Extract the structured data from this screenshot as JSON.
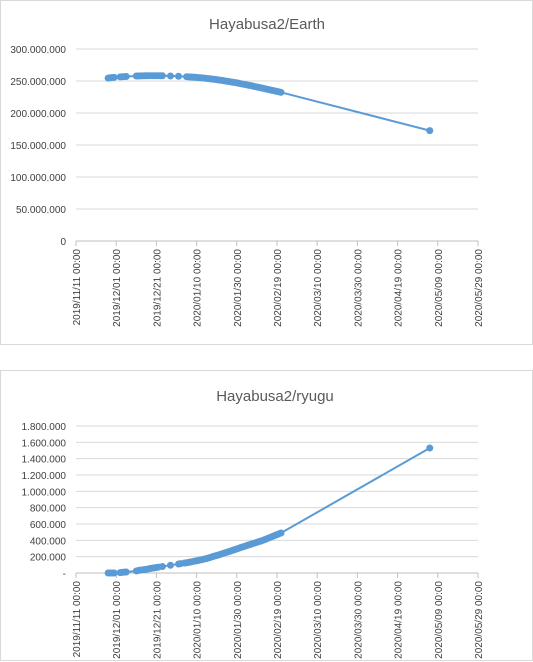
{
  "chart_data": [
    {
      "type": "scatter",
      "title": "Hayabusa2/Earth",
      "ylim": [
        0,
        300000000
      ],
      "yticks": [
        "300.000.000",
        "250.000.000",
        "200.000.000",
        "150.000.000",
        "100.000.000",
        "50.000.000",
        "0"
      ],
      "yvalues": [
        300000000,
        250000000,
        200000000,
        150000000,
        100000000,
        50000000,
        0
      ],
      "xlim": [
        "2019-11-11",
        "2020-05-29"
      ],
      "xticks": [
        "2019/11/11 00:00",
        "2019/12/01 00:00",
        "2019/12/21 00:00",
        "2020/01/10 00:00",
        "2020/01/30 00:00",
        "2020/02/19 00:00",
        "2020/03/10 00:00",
        "2020/03/30 00:00",
        "2020/04/19 00:00",
        "2020/05/09 00:00",
        "2020/05/29 00:00"
      ],
      "grid": true,
      "legend": "none",
      "color": "#5b9bd5",
      "series": [
        {
          "x": [
            "2019-11-27",
            "2019-11-28",
            "2019-11-29",
            "2019-11-30",
            "2019-12-03",
            "2019-12-04",
            "2019-12-05",
            "2019-12-06",
            "2019-12-11",
            "2019-12-12",
            "2019-12-13",
            "2019-12-14",
            "2019-12-15",
            "2019-12-16",
            "2019-12-17",
            "2019-12-18",
            "2019-12-19",
            "2019-12-20",
            "2019-12-21",
            "2019-12-22",
            "2019-12-23",
            "2019-12-24",
            "2019-12-28",
            "2020-01-01",
            "2020-01-05",
            "2020-01-06",
            "2020-01-07",
            "2020-01-08",
            "2020-01-09",
            "2020-01-10",
            "2020-01-11",
            "2020-01-12",
            "2020-01-13",
            "2020-01-14",
            "2020-01-15",
            "2020-01-16",
            "2020-01-17",
            "2020-01-18",
            "2020-01-19",
            "2020-01-20",
            "2020-01-21",
            "2020-01-22",
            "2020-01-23",
            "2020-01-24",
            "2020-01-25",
            "2020-01-26",
            "2020-01-27",
            "2020-01-28",
            "2020-01-29",
            "2020-01-30",
            "2020-01-31",
            "2020-02-01",
            "2020-02-02",
            "2020-02-03",
            "2020-02-04",
            "2020-02-05",
            "2020-02-06",
            "2020-02-07",
            "2020-02-08",
            "2020-02-09",
            "2020-02-10",
            "2020-02-11",
            "2020-02-12",
            "2020-02-13",
            "2020-02-14",
            "2020-02-15",
            "2020-02-16",
            "2020-02-17",
            "2020-02-18",
            "2020-02-19",
            "2020-02-20",
            "2020-02-21",
            "2020-05-05"
          ],
          "y": [
            254500000,
            255000000,
            255400000,
            255700000,
            256500000,
            256700000,
            256900000,
            257100000,
            257800000,
            257900000,
            258000000,
            258100000,
            258200000,
            258200000,
            258300000,
            258300000,
            258300000,
            258300000,
            258300000,
            258300000,
            258200000,
            258200000,
            257900000,
            257400000,
            256700000,
            256500000,
            256300000,
            256100000,
            255800000,
            255600000,
            255300000,
            255000000,
            254700000,
            254400000,
            254000000,
            253700000,
            253300000,
            252900000,
            252500000,
            252100000,
            251600000,
            251200000,
            250700000,
            250200000,
            249700000,
            249200000,
            248700000,
            248100000,
            247600000,
            247000000,
            246400000,
            245800000,
            245200000,
            244600000,
            244000000,
            243300000,
            242700000,
            242000000,
            241300000,
            240700000,
            240000000,
            239300000,
            238600000,
            237900000,
            237200000,
            236500000,
            235800000,
            235100000,
            234400000,
            233700000,
            233000000,
            232300000,
            172500000
          ]
        }
      ]
    },
    {
      "type": "scatter",
      "title": "Hayabusa2/ryugu",
      "ylim": [
        0,
        1800000
      ],
      "yticks": [
        "1.800.000",
        "1.600.000",
        "1.400.000",
        "1.200.000",
        "1.000.000",
        "800.000",
        "600.000",
        "400.000",
        "200.000",
        "-"
      ],
      "yvalues": [
        1800000,
        1600000,
        1400000,
        1200000,
        1000000,
        800000,
        600000,
        400000,
        200000,
        0
      ],
      "xlim": [
        "2019-11-11",
        "2020-05-29"
      ],
      "xticks": [
        "2019/11/11 00:00",
        "2019/12/01 00:00",
        "2019/12/21 00:00",
        "2020/01/10 00:00",
        "2020/01/30 00:00",
        "2020/02/19 00:00",
        "2020/03/10 00:00",
        "2020/03/30 00:00",
        "2020/04/19 00:00",
        "2020/05/09 00:00",
        "2020/05/29 00:00"
      ],
      "grid": true,
      "legend": "none",
      "color": "#5b9bd5",
      "series": [
        {
          "x": [
            "2019-11-27",
            "2019-11-28",
            "2019-11-29",
            "2019-11-30",
            "2019-12-03",
            "2019-12-04",
            "2019-12-05",
            "2019-12-06",
            "2019-12-11",
            "2019-12-12",
            "2019-12-13",
            "2019-12-14",
            "2019-12-15",
            "2019-12-16",
            "2019-12-17",
            "2019-12-18",
            "2019-12-19",
            "2019-12-20",
            "2019-12-21",
            "2019-12-22",
            "2019-12-24",
            "2019-12-28",
            "2020-01-01",
            "2020-01-02",
            "2020-01-04",
            "2020-01-05",
            "2020-01-06",
            "2020-01-07",
            "2020-01-08",
            "2020-01-09",
            "2020-01-10",
            "2020-01-11",
            "2020-01-12",
            "2020-01-13",
            "2020-01-14",
            "2020-01-15",
            "2020-01-16",
            "2020-01-17",
            "2020-01-18",
            "2020-01-19",
            "2020-01-20",
            "2020-01-21",
            "2020-01-22",
            "2020-01-23",
            "2020-01-24",
            "2020-01-25",
            "2020-01-26",
            "2020-01-27",
            "2020-01-28",
            "2020-01-29",
            "2020-01-30",
            "2020-01-31",
            "2020-02-01",
            "2020-02-02",
            "2020-02-03",
            "2020-02-04",
            "2020-02-05",
            "2020-02-06",
            "2020-02-07",
            "2020-02-08",
            "2020-02-09",
            "2020-02-10",
            "2020-02-11",
            "2020-02-12",
            "2020-02-13",
            "2020-02-14",
            "2020-02-15",
            "2020-02-16",
            "2020-02-17",
            "2020-02-18",
            "2020-02-19",
            "2020-02-20",
            "2020-02-21",
            "2020-05-05"
          ],
          "y": [
            0,
            0,
            0,
            0,
            5000,
            8000,
            10000,
            12000,
            25000,
            30000,
            35000,
            38000,
            42000,
            45000,
            50000,
            55000,
            60000,
            63000,
            67000,
            72000,
            80000,
            95000,
            110000,
            115000,
            122000,
            125000,
            130000,
            135000,
            140000,
            145000,
            150000,
            155000,
            160000,
            165000,
            172000,
            178000,
            185000,
            192000,
            200000,
            208000,
            215000,
            222000,
            230000,
            238000,
            246000,
            254000,
            262000,
            270000,
            278000,
            286000,
            295000,
            303000,
            312000,
            320000,
            328000,
            336000,
            344000,
            352000,
            360000,
            368000,
            376000,
            384000,
            392000,
            400000,
            410000,
            420000,
            430000,
            440000,
            450000,
            460000,
            470000,
            480000,
            490000,
            1530000
          ]
        }
      ]
    }
  ]
}
